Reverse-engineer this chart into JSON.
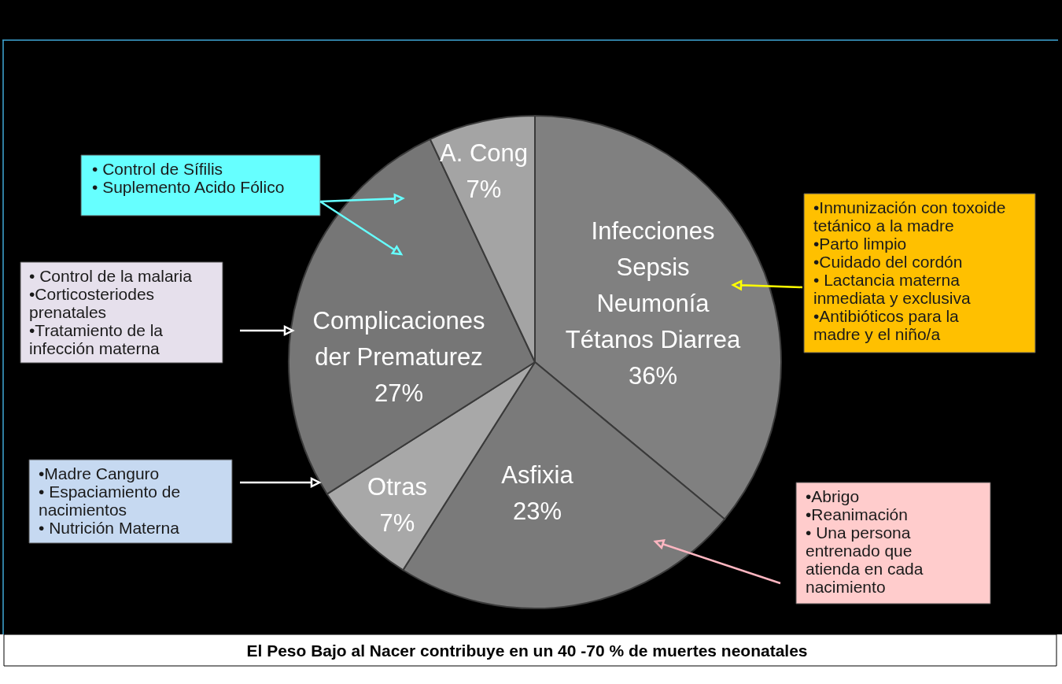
{
  "chart_data": {
    "type": "pie",
    "title": "El Peso Bajo al Nacer contribuye en un 40 -70 % de muertes neonatales",
    "categories": [
      "Infecciones\nSepsis\nNeumonía\nTétanos Diarrea",
      "Asfixia",
      "Otras",
      "Complicaciones\nder Prematurez",
      "A. Cong"
    ],
    "values": [
      36,
      23,
      7,
      27,
      7
    ],
    "colors": [
      "#808080",
      "#7a7a7a",
      "#a8a8a8",
      "#767676",
      "#a4a4a4"
    ],
    "value_labels": [
      "36%",
      "23%",
      "7%",
      "27%",
      "7%"
    ],
    "annotations": [
      "• Control de Sífilis\n• Suplemento Acido Fólico",
      "•Inmunización con toxoide\ntetánico a la madre\n•Parto limpio\n•Cuidado del cordón\n• Lactancia materna\ninmediata y exclusiva\n•Antibióticos para la\nmadre y el niño/a",
      "• Control de la malaria\n•Corticosteriodes\nprenatales\n•Tratamiento de la\ninfección materna",
      "•Madre Canguro\n• Espaciamiento de\nnacimientos\n• Nutrición Materna",
      "•Abrigo\n•Reanimación\n• Una persona\nentrenado que\natienda en cada\nnacimiento"
    ]
  }
}
